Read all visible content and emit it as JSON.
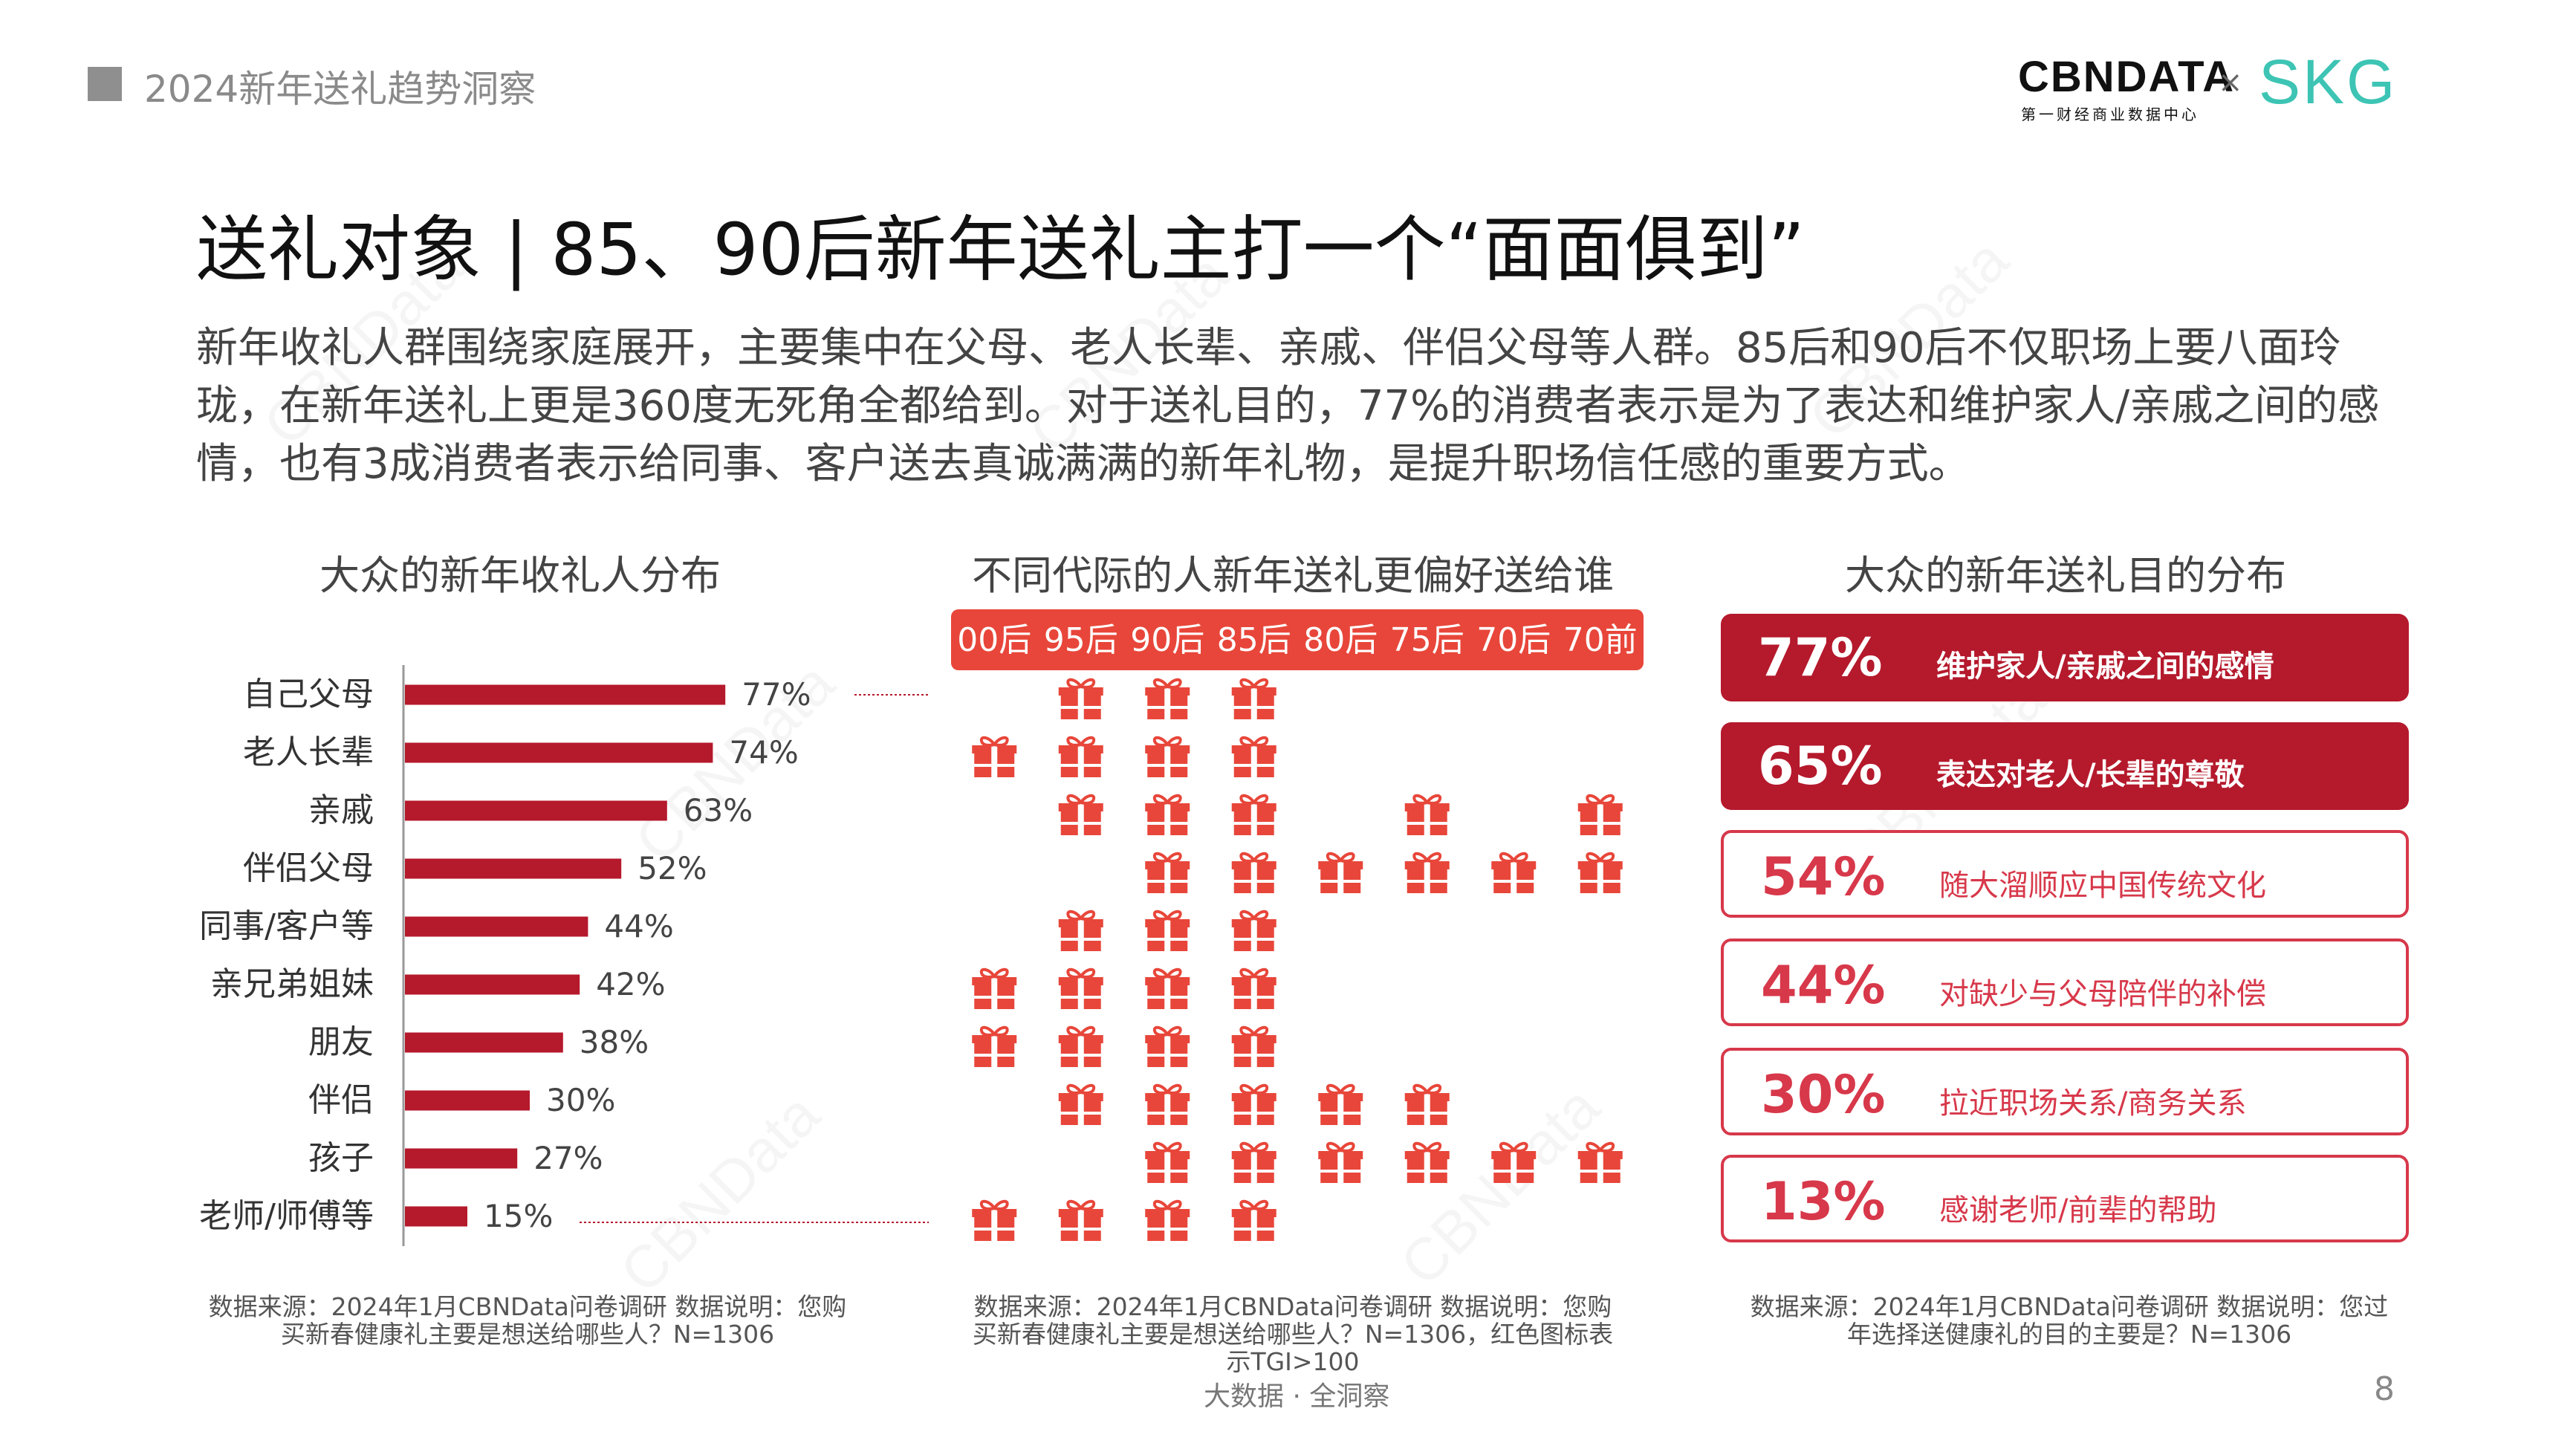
{
  "header": {
    "title": "2024新年送礼趋势洞察",
    "logo_cbn": "CBNDATA",
    "logo_cbn_sub": "第一财经商业数据中心",
    "logo_x": "×",
    "logo_skg": "SKG"
  },
  "main_title": "送礼对象 | 85、90后新年送礼主打一个“面面俱到”",
  "intro": "新年收礼人群围绕家庭展开，主要集中在父母、老人长辈、亲戚、伴侣父母等人群。85后和90后不仅职场上要八面玲珑，在新年送礼上更是360度无死角全都给到。对于送礼目的，77%的消费者表示是为了表达和维护家人/亲戚之间的感情，也有3成消费者表示给同事、客户送去真诚满满的新年礼物，是提升职场信任感的重要方式。",
  "watermark": "CBNData",
  "colors": {
    "bar": "#b5192c",
    "accent": "#d7384a",
    "gift": "#e8463a",
    "header_row": "#e8463a"
  },
  "chart_data": [
    {
      "type": "bar",
      "orientation": "horizontal",
      "title": "大众的新年收礼人分布",
      "categories": [
        "自己父母",
        "老人长辈",
        "亲戚",
        "伴侣父母",
        "同事/客户等",
        "亲兄弟姐妹",
        "朋友",
        "伴侣",
        "孩子",
        "老师/师傅等"
      ],
      "values": [
        77,
        74,
        63,
        52,
        44,
        42,
        38,
        30,
        27,
        15
      ],
      "labels": [
        "77%",
        "74%",
        "63%",
        "52%",
        "44%",
        "42%",
        "38%",
        "30%",
        "27%",
        "15%"
      ],
      "xlim": [
        0,
        100
      ],
      "note": "数据来源：2024年1月CBNData问卷调研  数据说明：您购买新春健康礼主要是想送给哪些人？N=1306"
    },
    {
      "type": "table",
      "title": "不同代际的人新年送礼更偏好送给谁",
      "columns": [
        "00后",
        "95后",
        "90后",
        "85后",
        "80后",
        "75后",
        "70后",
        "70前"
      ],
      "rows": [
        "自己父母",
        "老人长辈",
        "亲戚",
        "伴侣父母",
        "同事/客户等",
        "亲兄弟姐妹",
        "朋友",
        "伴侣",
        "孩子",
        "老师/师傅等"
      ],
      "icon": "gift-icon",
      "tgi_over_100": [
        [
          0,
          1,
          1,
          1,
          0,
          0,
          0,
          0
        ],
        [
          1,
          1,
          1,
          1,
          0,
          0,
          0,
          0
        ],
        [
          0,
          1,
          1,
          1,
          0,
          1,
          0,
          1
        ],
        [
          0,
          0,
          1,
          1,
          1,
          1,
          1,
          1
        ],
        [
          0,
          1,
          1,
          1,
          0,
          0,
          0,
          0
        ],
        [
          1,
          1,
          1,
          1,
          0,
          0,
          0,
          0
        ],
        [
          1,
          1,
          1,
          1,
          0,
          0,
          0,
          0
        ],
        [
          0,
          1,
          1,
          1,
          1,
          1,
          0,
          0
        ],
        [
          0,
          0,
          1,
          1,
          1,
          1,
          1,
          1
        ],
        [
          1,
          1,
          1,
          1,
          0,
          0,
          0,
          0
        ]
      ],
      "note": "数据来源：2024年1月CBNData问卷调研 数据说明：您购买新春健康礼主要是想送给哪些人？N=1306，红色图标表示TGI>100"
    },
    {
      "type": "bar",
      "title": "大众的新年送礼目的分布",
      "items": [
        {
          "value": 77,
          "label": "77%",
          "name": "维护家人/亲戚之间的感情",
          "highlight": true
        },
        {
          "value": 65,
          "label": "65%",
          "name": "表达对老人/长辈的尊敬",
          "highlight": true
        },
        {
          "value": 54,
          "label": "54%",
          "name": "随大溜顺应中国传统文化",
          "highlight": false
        },
        {
          "value": 44,
          "label": "44%",
          "name": "对缺少与父母陪伴的补偿",
          "highlight": false
        },
        {
          "value": 30,
          "label": "30%",
          "name": "拉近职场关系/商务关系",
          "highlight": false
        },
        {
          "value": 13,
          "label": "13%",
          "name": "感谢老师/前辈的帮助",
          "highlight": false
        }
      ],
      "note": "数据来源：2024年1月CBNData问卷调研 数据说明：您过年选择送健康礼的目的主要是？N=1306"
    }
  ],
  "footer": {
    "slogan": "大数据 · 全洞察",
    "page": "8"
  }
}
